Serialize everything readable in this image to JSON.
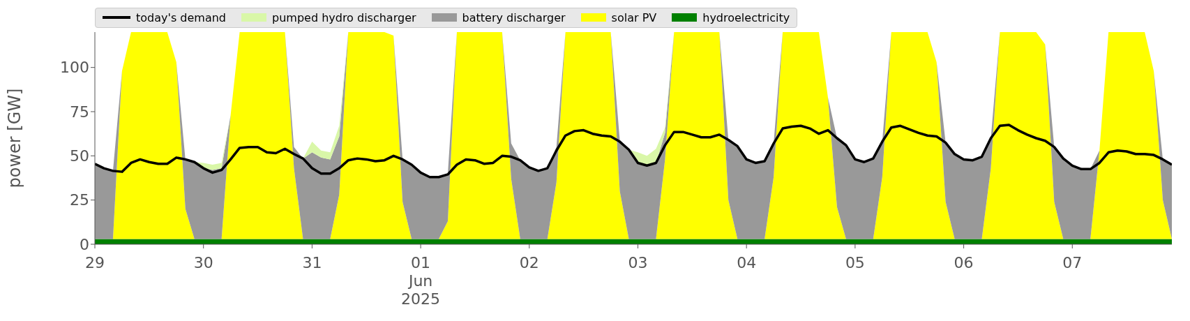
{
  "chart_data": {
    "type": "area",
    "stacked": true,
    "ylabel": "power [GW]",
    "ylim": [
      0,
      120
    ],
    "yticks": [
      0,
      25,
      50,
      75,
      100
    ],
    "xlim": [
      "2025-05-29T00:00",
      "2025-06-07T22:00"
    ],
    "xticks": [
      {
        "value": "2025-05-29",
        "label": "29"
      },
      {
        "value": "2025-05-30",
        "label": "30"
      },
      {
        "value": "2025-05-31",
        "label": "31"
      },
      {
        "value": "2025-06-01",
        "label": "01\nJun\n2025"
      },
      {
        "value": "2025-06-02",
        "label": "02"
      },
      {
        "value": "2025-06-03",
        "label": "03"
      },
      {
        "value": "2025-06-04",
        "label": "04"
      },
      {
        "value": "2025-06-05",
        "label": "05"
      },
      {
        "value": "2025-06-06",
        "label": "06"
      },
      {
        "value": "2025-06-07",
        "label": "07"
      }
    ],
    "legend": "top left",
    "x": [
      "2025-05-29T00:00",
      "2025-05-29T02:00",
      "2025-05-29T04:00",
      "2025-05-29T06:00",
      "2025-05-29T08:00",
      "2025-05-29T10:00",
      "2025-05-29T12:00",
      "2025-05-29T14:00",
      "2025-05-29T16:00",
      "2025-05-29T18:00",
      "2025-05-29T20:00",
      "2025-05-29T22:00",
      "2025-05-30T00:00",
      "2025-05-30T02:00",
      "2025-05-30T04:00",
      "2025-05-30T06:00",
      "2025-05-30T08:00",
      "2025-05-30T10:00",
      "2025-05-30T12:00",
      "2025-05-30T14:00",
      "2025-05-30T16:00",
      "2025-05-30T18:00",
      "2025-05-30T20:00",
      "2025-05-30T22:00",
      "2025-05-31T00:00",
      "2025-05-31T02:00",
      "2025-05-31T04:00",
      "2025-05-31T06:00",
      "2025-05-31T08:00",
      "2025-05-31T10:00",
      "2025-05-31T12:00",
      "2025-05-31T14:00",
      "2025-05-31T16:00",
      "2025-05-31T18:00",
      "2025-05-31T20:00",
      "2025-05-31T22:00",
      "2025-06-01T00:00",
      "2025-06-01T02:00",
      "2025-06-01T04:00",
      "2025-06-01T06:00",
      "2025-06-01T08:00",
      "2025-06-01T10:00",
      "2025-06-01T12:00",
      "2025-06-01T14:00",
      "2025-06-01T16:00",
      "2025-06-01T18:00",
      "2025-06-01T20:00",
      "2025-06-01T22:00",
      "2025-06-02T00:00",
      "2025-06-02T02:00",
      "2025-06-02T04:00",
      "2025-06-02T06:00",
      "2025-06-02T08:00",
      "2025-06-02T10:00",
      "2025-06-02T12:00",
      "2025-06-02T14:00",
      "2025-06-02T16:00",
      "2025-06-02T18:00",
      "2025-06-02T20:00",
      "2025-06-02T22:00",
      "2025-06-03T00:00",
      "2025-06-03T02:00",
      "2025-06-03T04:00",
      "2025-06-03T06:00",
      "2025-06-03T08:00",
      "2025-06-03T10:00",
      "2025-06-03T12:00",
      "2025-06-03T14:00",
      "2025-06-03T16:00",
      "2025-06-03T18:00",
      "2025-06-03T20:00",
      "2025-06-03T22:00",
      "2025-06-04T00:00",
      "2025-06-04T02:00",
      "2025-06-04T04:00",
      "2025-06-04T06:00",
      "2025-06-04T08:00",
      "2025-06-04T10:00",
      "2025-06-04T12:00",
      "2025-06-04T14:00",
      "2025-06-04T16:00",
      "2025-06-04T18:00",
      "2025-06-04T20:00",
      "2025-06-04T22:00",
      "2025-06-05T00:00",
      "2025-06-05T02:00",
      "2025-06-05T04:00",
      "2025-06-05T06:00",
      "2025-06-05T08:00",
      "2025-06-05T10:00",
      "2025-06-05T12:00",
      "2025-06-05T14:00",
      "2025-06-05T16:00",
      "2025-06-05T18:00",
      "2025-06-05T20:00",
      "2025-06-05T22:00",
      "2025-06-06T00:00",
      "2025-06-06T02:00",
      "2025-06-06T04:00",
      "2025-06-06T06:00",
      "2025-06-06T08:00",
      "2025-06-06T10:00",
      "2025-06-06T12:00",
      "2025-06-06T14:00",
      "2025-06-06T16:00",
      "2025-06-06T18:00",
      "2025-06-06T20:00",
      "2025-06-06T22:00",
      "2025-06-07T00:00",
      "2025-06-07T02:00",
      "2025-06-07T04:00",
      "2025-06-07T06:00",
      "2025-06-07T08:00",
      "2025-06-07T10:00",
      "2025-06-07T12:00",
      "2025-06-07T14:00",
      "2025-06-07T16:00",
      "2025-06-07T18:00",
      "2025-06-07T20:00",
      "2025-06-07T22:00"
    ],
    "series": [
      {
        "name": "hydroelectricity",
        "color": "#008000",
        "values": [
          3,
          3,
          3,
          3,
          3,
          3,
          3,
          3,
          3,
          3,
          3,
          3,
          3,
          3,
          3,
          3,
          3,
          3,
          3,
          3,
          3,
          3,
          3,
          3,
          3,
          3,
          3,
          3,
          3,
          3,
          3,
          3,
          3,
          3,
          3,
          3,
          3,
          3,
          3,
          3,
          3,
          3,
          3,
          3,
          3,
          3,
          3,
          3,
          3,
          3,
          3,
          3,
          3,
          3,
          3,
          3,
          3,
          3,
          3,
          3,
          3,
          3,
          3,
          3,
          3,
          3,
          3,
          3,
          3,
          3,
          3,
          3,
          3,
          3,
          3,
          3,
          3,
          3,
          3,
          3,
          3,
          3,
          3,
          3,
          3,
          3,
          3,
          3,
          3,
          3,
          3,
          3,
          3,
          3,
          3,
          3,
          3,
          3,
          3,
          3,
          3,
          3,
          3,
          3,
          3,
          3,
          3,
          3,
          3,
          3,
          3,
          3,
          3,
          3,
          3,
          3,
          3,
          3,
          3,
          3
        ]
      },
      {
        "name": "solar PV",
        "color": "#ffff00",
        "values": [
          null,
          null,
          0,
          95,
          117,
          117,
          117,
          117,
          117,
          100,
          17,
          0,
          null,
          null,
          0,
          70,
          117,
          117,
          117,
          117,
          117,
          117,
          40,
          0,
          null,
          null,
          0,
          25,
          117,
          117,
          117,
          117,
          117,
          115,
          21,
          0,
          null,
          null,
          0,
          10,
          117,
          117,
          117,
          117,
          117,
          117,
          34,
          0,
          null,
          null,
          0,
          32,
          117,
          117,
          117,
          117,
          117,
          117,
          27,
          0,
          null,
          null,
          0,
          45,
          117,
          117,
          117,
          117,
          117,
          117,
          22,
          0,
          null,
          null,
          0,
          35,
          117,
          117,
          117,
          117,
          117,
          80,
          18,
          0,
          null,
          null,
          0,
          35,
          117,
          117,
          117,
          117,
          117,
          100,
          21,
          0,
          null,
          null,
          0,
          40,
          117,
          117,
          117,
          117,
          117,
          110,
          21,
          0,
          null,
          null,
          0,
          50,
          117,
          117,
          117,
          117,
          117,
          95,
          22,
          0
        ]
      },
      {
        "name": "battery discharger",
        "color": "#999999",
        "values": [
          42.5,
          40,
          38.5,
          0,
          null,
          null,
          null,
          null,
          null,
          0,
          28,
          43.5,
          40,
          39,
          40,
          0,
          null,
          null,
          null,
          null,
          null,
          0,
          12,
          45.5,
          49,
          46,
          45,
          33,
          0,
          null,
          null,
          null,
          null,
          0,
          24,
          42,
          37.5,
          35,
          35,
          27,
          0,
          null,
          null,
          null,
          null,
          0,
          20,
          44.5,
          40.5,
          38.5,
          40,
          20,
          0,
          null,
          null,
          null,
          null,
          0,
          29,
          50.5,
          43,
          41.5,
          43,
          15,
          0,
          null,
          null,
          null,
          null,
          0,
          34,
          52.5,
          45,
          43,
          44,
          19,
          0,
          null,
          null,
          null,
          null,
          0,
          39,
          53,
          45,
          43.5,
          45.5,
          20,
          0,
          null,
          null,
          null,
          null,
          0,
          33.5,
          48,
          45,
          44.5,
          46.5,
          17,
          0,
          null,
          null,
          null,
          null,
          0,
          31,
          45.5,
          41.5,
          39.5,
          39.5,
          0,
          null,
          null,
          null,
          null,
          null,
          0,
          23,
          42
        ]
      },
      {
        "name": "pumped hydro discharger",
        "color": "#d9f7a8",
        "values": [
          null,
          null,
          null,
          null,
          null,
          null,
          null,
          null,
          null,
          null,
          null,
          0,
          3,
          3,
          3,
          0,
          null,
          null,
          null,
          null,
          null,
          null,
          null,
          0,
          6,
          4,
          4,
          6,
          0,
          null,
          null,
          null,
          null,
          null,
          null,
          null,
          null,
          null,
          null,
          null,
          null,
          null,
          null,
          null,
          null,
          null,
          null,
          null,
          null,
          null,
          null,
          null,
          null,
          null,
          null,
          null,
          null,
          null,
          null,
          0,
          6,
          5.5,
          8,
          3,
          0,
          null,
          null,
          null,
          null,
          null,
          null,
          null,
          null,
          null,
          null,
          null,
          null,
          null,
          null,
          null,
          null,
          null,
          null,
          null,
          null,
          null,
          null,
          null,
          null,
          null,
          null,
          null,
          null,
          null,
          null,
          null,
          null,
          null,
          null,
          null,
          null,
          null,
          null,
          null,
          null,
          null,
          null,
          null,
          null,
          null,
          null,
          null,
          null,
          null,
          null,
          null,
          null,
          null,
          null,
          null
        ]
      },
      {
        "name": "today's demand",
        "type": "line",
        "color": "#000000",
        "values": [
          45.5,
          43,
          41.5,
          41,
          46,
          48,
          46.5,
          45.5,
          45.5,
          49,
          48,
          46.5,
          43,
          40.5,
          42,
          48,
          54.5,
          55,
          55,
          52,
          51.5,
          54,
          51,
          48.5,
          43,
          40,
          40,
          43,
          47.5,
          48.5,
          48,
          47,
          47.5,
          50,
          48,
          45,
          40.5,
          38,
          38,
          39.5,
          45,
          48,
          47.5,
          45.5,
          46,
          50,
          49.5,
          47.5,
          43.5,
          41.5,
          43,
          53,
          61.5,
          64,
          64.5,
          62.5,
          61.5,
          61,
          58,
          53.5,
          46,
          44.5,
          46,
          56,
          63.5,
          63.5,
          62,
          60.5,
          60.5,
          62,
          59,
          55.5,
          48,
          46,
          47,
          57,
          65.5,
          66.5,
          67,
          65.5,
          62.5,
          64.5,
          60,
          56,
          48,
          46.5,
          48.5,
          58,
          66,
          67,
          65,
          63,
          61.5,
          61,
          57.5,
          51,
          48,
          47.5,
          49.5,
          60,
          67,
          67.5,
          64.5,
          62,
          60,
          58.5,
          55,
          48.5,
          44.5,
          42.5,
          42.5,
          46,
          52,
          53,
          52.5,
          51,
          51,
          50.5,
          48,
          45
        ]
      }
    ]
  }
}
